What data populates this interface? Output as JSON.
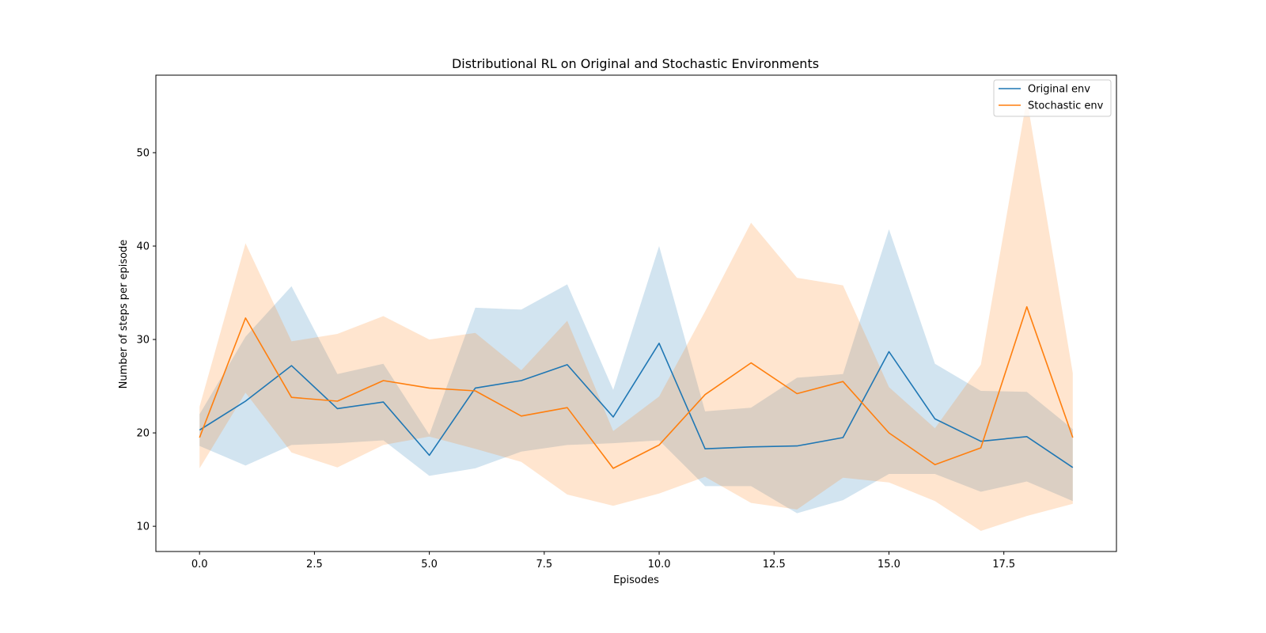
{
  "chart_data": {
    "type": "line",
    "title": "Distributional RL on Original and Stochastic Environments",
    "xlabel": "Episodes",
    "ylabel": "Number of steps per episode",
    "xlim": [
      -0.95,
      19.95
    ],
    "ylim": [
      7.3,
      58.3
    ],
    "xticks": [
      0.0,
      2.5,
      5.0,
      7.5,
      10.0,
      12.5,
      15.0,
      17.5
    ],
    "xtick_labels": [
      "0.0",
      "2.5",
      "5.0",
      "7.5",
      "10.0",
      "12.5",
      "15.0",
      "17.5"
    ],
    "yticks": [
      10,
      20,
      30,
      40,
      50
    ],
    "ytick_labels": [
      "10",
      "20",
      "30",
      "40",
      "50"
    ],
    "grid": false,
    "legend_position": "top-right",
    "x": [
      0,
      1,
      2,
      3,
      4,
      5,
      6,
      7,
      8,
      9,
      10,
      11,
      12,
      13,
      14,
      15,
      16,
      17,
      18,
      19
    ],
    "series": [
      {
        "name": "Original env",
        "color": "#1f77b4",
        "band_color": "#1f77b4",
        "values": [
          20.3,
          23.4,
          27.2,
          22.6,
          23.3,
          17.6,
          24.8,
          25.6,
          27.3,
          21.7,
          29.6,
          18.3,
          18.5,
          18.6,
          19.5,
          28.7,
          21.5,
          19.1,
          19.6,
          16.3
        ],
        "upper": [
          22.0,
          30.3,
          35.7,
          26.3,
          27.4,
          19.8,
          33.4,
          33.2,
          35.9,
          24.6,
          40.0,
          22.3,
          22.7,
          25.9,
          26.3,
          41.8,
          27.4,
          24.5,
          24.4,
          20.4
        ],
        "lower": [
          18.6,
          16.5,
          18.7,
          18.9,
          19.2,
          15.4,
          16.2,
          18.0,
          18.7,
          18.9,
          19.2,
          14.3,
          14.3,
          11.4,
          12.8,
          15.6,
          15.6,
          13.7,
          14.8,
          12.7
        ]
      },
      {
        "name": "Stochastic env",
        "color": "#ff7f0e",
        "band_color": "#ff7f0e",
        "values": [
          19.5,
          32.3,
          23.8,
          23.4,
          25.6,
          24.8,
          24.5,
          21.8,
          22.7,
          16.2,
          18.7,
          24.1,
          27.5,
          24.2,
          25.5,
          20.0,
          16.6,
          18.4,
          33.5,
          19.5
        ],
        "upper": [
          22.8,
          40.3,
          29.8,
          30.6,
          32.5,
          30.0,
          30.7,
          26.7,
          32.0,
          20.2,
          23.9,
          33.0,
          42.5,
          36.6,
          35.8,
          24.9,
          20.5,
          27.3,
          55.8,
          26.4
        ],
        "lower": [
          16.2,
          24.3,
          17.9,
          16.3,
          18.7,
          19.6,
          18.3,
          16.9,
          13.4,
          12.2,
          13.5,
          15.3,
          12.5,
          11.8,
          15.2,
          14.7,
          12.7,
          9.5,
          11.1,
          12.4
        ]
      }
    ]
  }
}
